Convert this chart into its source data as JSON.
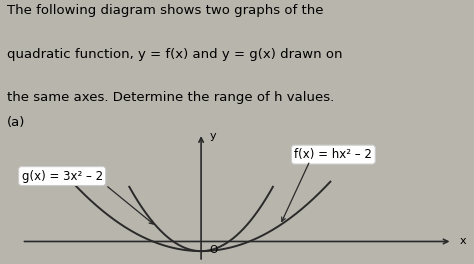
{
  "bg_light": "#e8e7e2",
  "bg_graph": "#b8b5ac",
  "plot_color": "#2a2a2a",
  "label_box_color": "#ffffff",
  "label_box_edge": "#cccccc",
  "title_lines": [
    "The following diagram shows two graphs of the",
    "quadratic function, y = f(x) and y = g(x) drawn on",
    "the same axes. Determine the range of h values."
  ],
  "part_label": "(a)",
  "g_label": "g(x) = 3x² – 2",
  "f_label": "f(x) = hx² – 2",
  "axis_x_label": "x",
  "axis_y_label": "y",
  "origin_label": "O",
  "g_coeff": 3,
  "f_coeff": 1,
  "font_size_title": 9.5,
  "font_size_labels": 8.5,
  "font_size_axis": 8,
  "font_size_origin": 7.5
}
